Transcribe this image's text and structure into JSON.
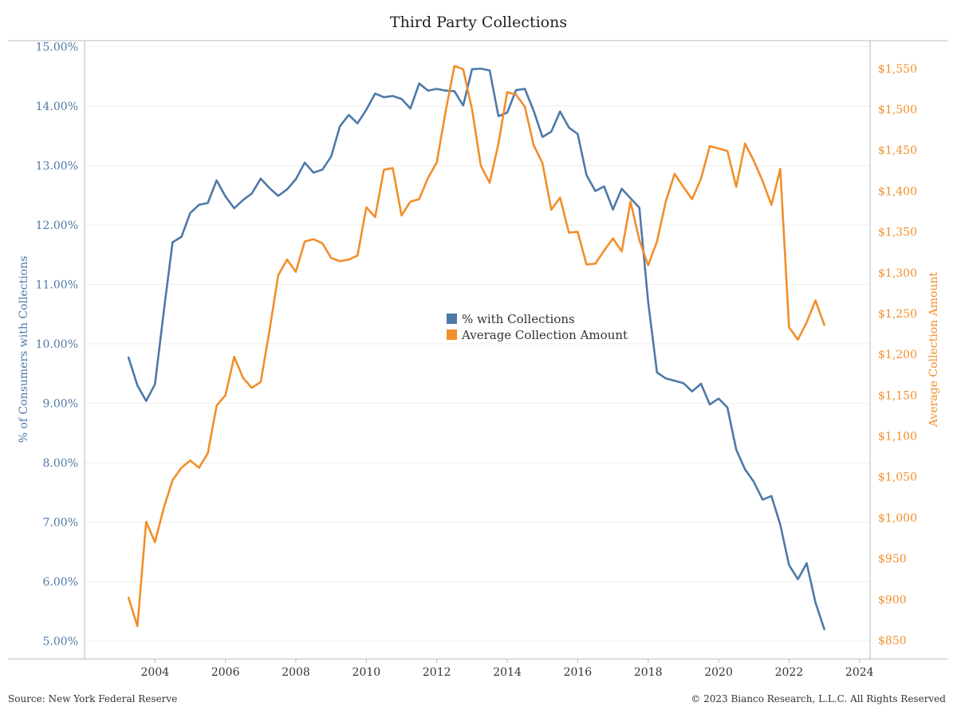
{
  "title": "Third Party Collections",
  "footer": {
    "source": "Source: New York Federal Reserve",
    "copyright": "© 2023 Bianco Research, L.L.C. All Rights Reserved"
  },
  "colors": {
    "collections_pct": "#4e79a7",
    "avg_amount": "#f28e2b",
    "gridline": "#eeeeee",
    "axis": "#bbbbbb"
  },
  "chart_data": {
    "type": "line",
    "title": "Third Party Collections",
    "ylabel": "% of Consumers with Collections",
    "y2label": "Average Collection Amount",
    "xlim": [
      2002.0,
      2024.3
    ],
    "ylim": [
      4.7,
      15.1
    ],
    "y2lim": [
      827,
      1584
    ],
    "x_ticks": [
      2004,
      2006,
      2008,
      2010,
      2012,
      2014,
      2016,
      2018,
      2020,
      2022,
      2024
    ],
    "x_tick_labels": [
      "2004",
      "2006",
      "2008",
      "2010",
      "2012",
      "2014",
      "2016",
      "2018",
      "2020",
      "2022",
      "2024"
    ],
    "y_ticks": [
      5,
      6,
      7,
      8,
      9,
      10,
      11,
      12,
      13,
      14,
      15
    ],
    "y_tick_labels": [
      "5.00%",
      "6.00%",
      "7.00%",
      "8.00%",
      "9.00%",
      "10.00%",
      "11.00%",
      "12.00%",
      "13.00%",
      "14.00%",
      "15.00%"
    ],
    "y2_ticks": [
      850,
      900,
      950,
      1000,
      1050,
      1100,
      1150,
      1200,
      1250,
      1300,
      1350,
      1400,
      1450,
      1500,
      1550
    ],
    "y2_tick_labels": [
      "$850",
      "$900",
      "$950",
      "$1,000",
      "$1,050",
      "$1,100",
      "$1,150",
      "$1,200",
      "$1,250",
      "$1,300",
      "$1,350",
      "$1,400",
      "$1,450",
      "$1,500",
      "$1,550"
    ],
    "legend": {
      "position": "center",
      "entries": [
        "% with Collections",
        "Average Collection Amount"
      ]
    },
    "grid": true,
    "series": [
      {
        "name": "% with Collections",
        "axis": "left",
        "color": "#4e79a7",
        "x": [
          2003.25,
          2003.5,
          2003.75,
          2004.0,
          2004.25,
          2004.5,
          2004.75,
          2005.0,
          2005.25,
          2005.5,
          2005.75,
          2006.0,
          2006.25,
          2006.5,
          2006.75,
          2007.0,
          2007.25,
          2007.5,
          2007.75,
          2008.0,
          2008.25,
          2008.5,
          2008.75,
          2009.0,
          2009.25,
          2009.5,
          2009.75,
          2010.0,
          2010.25,
          2010.5,
          2010.75,
          2011.0,
          2011.25,
          2011.5,
          2011.75,
          2012.0,
          2012.25,
          2012.5,
          2012.75,
          2013.0,
          2013.25,
          2013.5,
          2013.75,
          2014.0,
          2014.25,
          2014.5,
          2014.75,
          2015.0,
          2015.25,
          2015.5,
          2015.75,
          2016.0,
          2016.25,
          2016.5,
          2016.75,
          2017.0,
          2017.25,
          2017.5,
          2017.75,
          2018.0,
          2018.25,
          2018.5,
          2018.75,
          2019.0,
          2019.25,
          2019.5,
          2019.75,
          2020.0,
          2020.25,
          2020.5,
          2020.75,
          2021.0,
          2021.25,
          2021.5,
          2021.75,
          2022.0,
          2022.25,
          2022.5,
          2022.75,
          2023.0
        ],
        "values": [
          9.77,
          9.3,
          9.04,
          9.32,
          10.55,
          11.71,
          11.8,
          12.2,
          12.34,
          12.37,
          12.75,
          12.48,
          12.28,
          12.42,
          12.53,
          12.78,
          12.62,
          12.49,
          12.6,
          12.77,
          13.05,
          12.88,
          12.93,
          13.15,
          13.66,
          13.85,
          13.71,
          13.94,
          14.21,
          14.15,
          14.17,
          14.12,
          13.96,
          14.38,
          14.26,
          14.29,
          14.26,
          14.25,
          14.01,
          14.62,
          14.63,
          14.6,
          13.83,
          13.89,
          14.27,
          14.29,
          13.92,
          13.48,
          13.57,
          13.91,
          13.64,
          13.53,
          12.84,
          12.57,
          12.65,
          12.26,
          12.61,
          12.45,
          12.29,
          10.71,
          9.52,
          9.42,
          9.38,
          9.34,
          9.2,
          9.33,
          8.98,
          9.08,
          8.93,
          8.22,
          7.89,
          7.68,
          7.38,
          7.44,
          6.96,
          6.28,
          6.04,
          6.31,
          5.65,
          5.2
        ]
      },
      {
        "name": "Average Collection Amount",
        "axis": "right",
        "color": "#f28e2b",
        "x": [
          2003.25,
          2003.5,
          2003.75,
          2004.0,
          2004.25,
          2004.5,
          2004.75,
          2005.0,
          2005.25,
          2005.5,
          2005.75,
          2006.0,
          2006.25,
          2006.5,
          2006.75,
          2007.0,
          2007.25,
          2007.5,
          2007.75,
          2008.0,
          2008.25,
          2008.5,
          2008.75,
          2009.0,
          2009.25,
          2009.5,
          2009.75,
          2010.0,
          2010.25,
          2010.5,
          2010.75,
          2011.0,
          2011.25,
          2011.5,
          2011.75,
          2012.0,
          2012.25,
          2012.5,
          2012.75,
          2013.0,
          2013.25,
          2013.5,
          2013.75,
          2014.0,
          2014.25,
          2014.5,
          2014.75,
          2015.0,
          2015.25,
          2015.5,
          2015.75,
          2016.0,
          2016.25,
          2016.5,
          2016.75,
          2017.0,
          2017.25,
          2017.5,
          2017.75,
          2018.0,
          2018.25,
          2018.5,
          2018.75,
          2019.0,
          2019.25,
          2019.5,
          2019.75,
          2020.0,
          2020.25,
          2020.5,
          2020.75,
          2021.0,
          2021.25,
          2021.5,
          2021.75,
          2022.0,
          2022.25,
          2022.5,
          2022.75,
          2023.0
        ],
        "values": [
          902,
          867,
          995,
          970,
          1012,
          1046,
          1061,
          1070,
          1061,
          1079,
          1137,
          1150,
          1197,
          1171,
          1159,
          1166,
          1229,
          1297,
          1316,
          1301,
          1338,
          1341,
          1336,
          1318,
          1314,
          1316,
          1321,
          1380,
          1368,
          1426,
          1428,
          1370,
          1387,
          1390,
          1416,
          1435,
          1497,
          1553,
          1549,
          1500,
          1431,
          1410,
          1458,
          1521,
          1518,
          1503,
          1456,
          1434,
          1377,
          1392,
          1349,
          1350,
          1310,
          1311,
          1327,
          1342,
          1326,
          1387,
          1340,
          1309,
          1338,
          1387,
          1421,
          1405,
          1390,
          1415,
          1455,
          1452,
          1449,
          1405,
          1458,
          1437,
          1412,
          1383,
          1427,
          1233,
          1218,
          1239,
          1266,
          1236
        ]
      }
    ]
  }
}
